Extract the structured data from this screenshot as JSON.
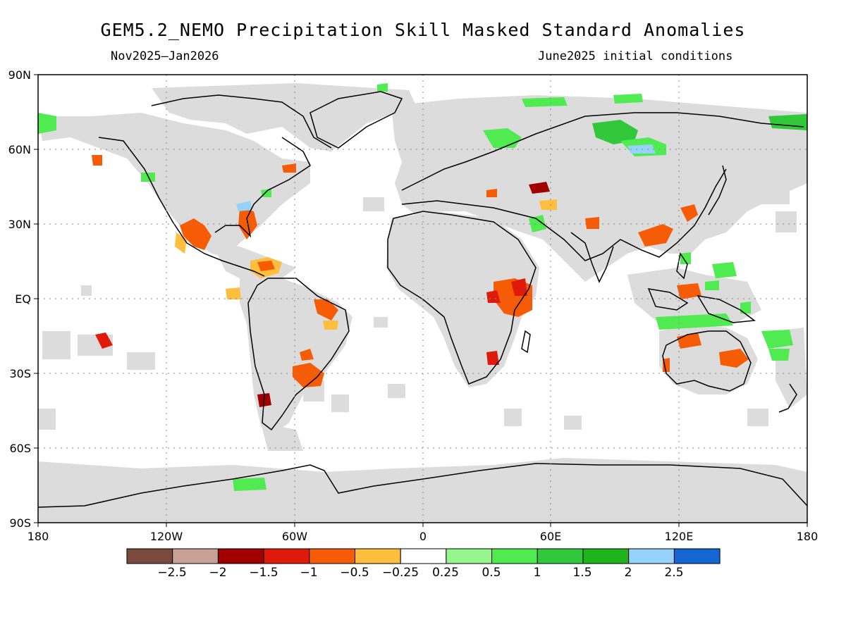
{
  "map": {
    "title": "GEM5.2_NEMO Precipitation Skill Masked Standard Anomalies",
    "period": "Nov2025–Jan2026",
    "initial_conditions": "June2025 initial conditions",
    "lat_labels": [
      "90N",
      "60N",
      "30N",
      "EQ",
      "30S",
      "60S",
      "90S"
    ],
    "lon_labels": [
      "180",
      "120W",
      "60W",
      "0",
      "60E",
      "120E",
      "180"
    ],
    "colorbar": {
      "colors": [
        "#7a4a3e",
        "#c8a095",
        "#a00000",
        "#e01a0a",
        "#f55c05",
        "#ffbe3d",
        "#ffffff",
        "#96f58c",
        "#50eb50",
        "#32c83c",
        "#1eb41e",
        "#96d2fa",
        "#1466d2"
      ],
      "labels": [
        "−2.5",
        "−2",
        "−1.5",
        "−1",
        "−0.5",
        "−0.25",
        "0.25",
        "0.5",
        "1",
        "1.5",
        "2",
        "2.5"
      ]
    },
    "land_color": "#dcdcdc",
    "grid_style": "dotted"
  }
}
